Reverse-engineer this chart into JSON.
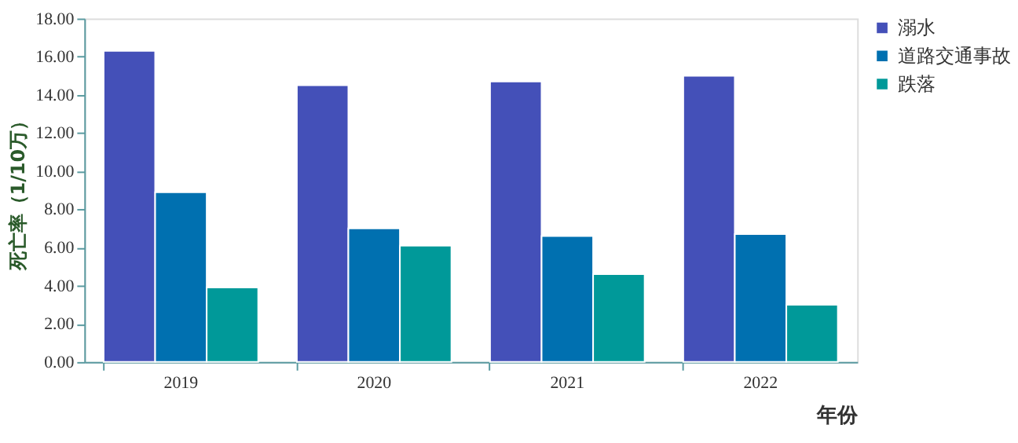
{
  "chart_data": {
    "type": "bar",
    "xlabel": "年份",
    "ylabel": "死亡率（1/10万）",
    "categories": [
      "2019",
      "2020",
      "2021",
      "2022"
    ],
    "series": [
      {
        "name": "溺水",
        "color": "#4450b8",
        "values": [
          16.3,
          14.5,
          14.7,
          15.0
        ]
      },
      {
        "name": "道路交通事故",
        "color": "#0070b0",
        "values": [
          8.9,
          7.0,
          6.6,
          6.7
        ]
      },
      {
        "name": "跌落",
        "color": "#009999",
        "values": [
          3.9,
          6.1,
          4.6,
          3.0
        ]
      }
    ],
    "ylim": [
      0,
      18
    ],
    "yticks": [
      {
        "value": 0,
        "label": "0.00"
      },
      {
        "value": 2,
        "label": "2.00"
      },
      {
        "value": 4,
        "label": "4.00"
      },
      {
        "value": 6,
        "label": "6.00"
      },
      {
        "value": 8,
        "label": "8.00"
      },
      {
        "value": 10,
        "label": "10.00"
      },
      {
        "value": 12,
        "label": "12.00"
      },
      {
        "value": 14,
        "label": "14.00"
      },
      {
        "value": 16,
        "label": "16.00"
      },
      {
        "value": 18,
        "label": "18.00"
      }
    ],
    "grid": false,
    "legend": "right"
  }
}
